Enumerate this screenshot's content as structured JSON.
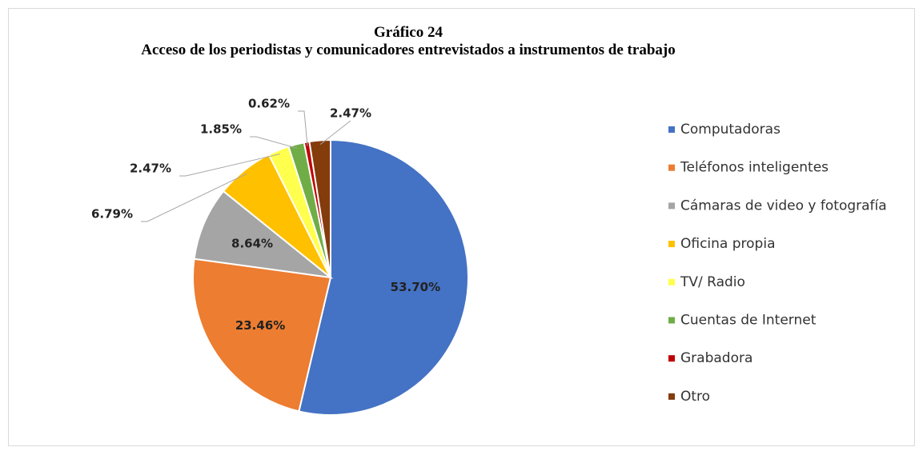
{
  "chart_data": {
    "type": "pie",
    "title": "Gráfico 24",
    "subtitle": "Acceso  de los periodistas y comunicadores entrevistados a instrumentos de trabajo",
    "categories": [
      "Computadoras",
      "Teléfonos inteligentes",
      "Cámaras de video y fotografía",
      "Oficina propia",
      "TV/ Radio",
      "Cuentas de Internet",
      "Grabadora",
      "Otro"
    ],
    "values": [
      53.7,
      23.46,
      8.64,
      6.79,
      2.47,
      1.85,
      0.62,
      2.47
    ],
    "value_labels": [
      "53.70%",
      "23.46%",
      "8.64%",
      "6.79%",
      "2.47%",
      "1.85%",
      "0.62%",
      "2.47%"
    ],
    "colors": [
      "#4472c4",
      "#ed7d31",
      "#a5a5a5",
      "#ffc000",
      "#ffff4d",
      "#70ad47",
      "#c00000",
      "#843c0c"
    ],
    "legend": "right"
  }
}
